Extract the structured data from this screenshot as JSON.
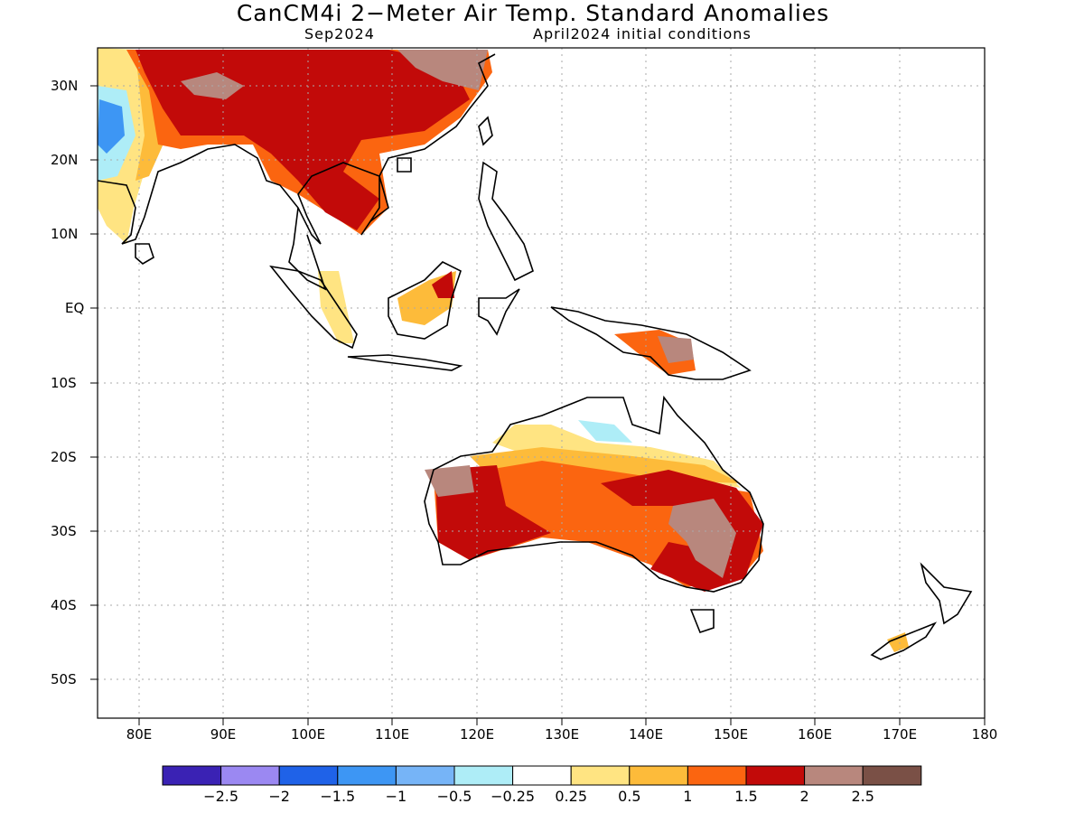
{
  "title": "CanCM4i 2−Meter Air Temp. Standard Anomalies",
  "valid_month": "Sep2024",
  "init": "April2024 initial conditions",
  "lat_labels": [
    "30N",
    "20N",
    "10N",
    "EQ",
    "10S",
    "20S",
    "30S",
    "40S",
    "50S"
  ],
  "lon_labels": [
    "80E",
    "90E",
    "100E",
    "110E",
    "120E",
    "130E",
    "140E",
    "150E",
    "160E",
    "170E",
    "180"
  ],
  "colorbar": {
    "colors": [
      "#3a22b4",
      "#9b88f2",
      "#1f62e8",
      "#3d96f4",
      "#76b4f7",
      "#aeedf7",
      "#ffffff",
      "#ffe482",
      "#fdbb3a",
      "#fb6510",
      "#c20a09",
      "#b8877d",
      "#7a5046"
    ],
    "labels": [
      "−2.5",
      "−2",
      "−1.5",
      "−1",
      "−0.5",
      "−0.25",
      "0.25",
      "0.5",
      "1",
      "1.5",
      "2",
      "2.5"
    ]
  },
  "colors": {
    "land_outline": "#000000",
    "grid": "#aaaaaa",
    "frame": "#000000"
  }
}
